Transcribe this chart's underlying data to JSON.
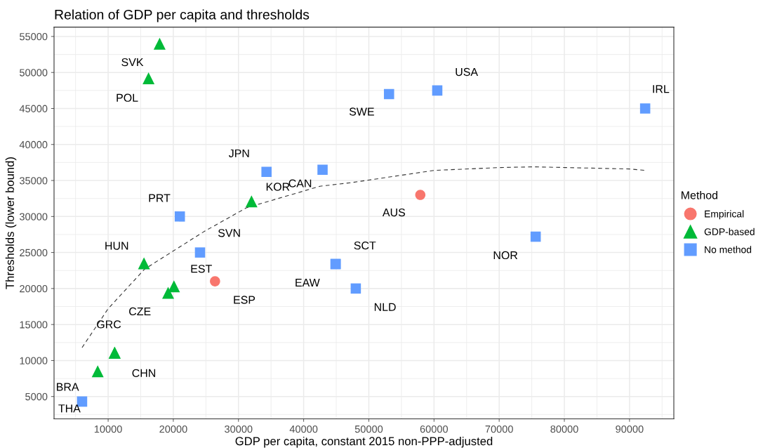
{
  "chart_data": {
    "type": "scatter",
    "title": "Relation of GDP per capita and thresholds",
    "xlabel": "GDP per capita, constant 2015 non-PPP-adjusted",
    "ylabel": "Thresholds (lower bound)",
    "legend_title": "Method",
    "xlim": [
      1700,
      96800
    ],
    "ylim": [
      1900,
      56300
    ],
    "xticks": [
      10000,
      20000,
      30000,
      40000,
      50000,
      60000,
      70000,
      80000,
      90000
    ],
    "yticks": [
      5000,
      10000,
      15000,
      20000,
      25000,
      30000,
      35000,
      40000,
      45000,
      50000,
      55000
    ],
    "grid": true,
    "legend": "right",
    "series": [
      {
        "name": "Empirical",
        "color": "#f8766d",
        "marker": "circle",
        "x": [
          57900,
          26400
        ],
        "values": [
          33000,
          21000
        ],
        "value_labels": [
          "AUS",
          "ESP"
        ]
      },
      {
        "name": "GDP-based",
        "color": "#00ba38",
        "marker": "triangle",
        "x": [
          17900,
          16200,
          32000,
          15500,
          20100,
          19200,
          11000,
          11000,
          8400
        ],
        "values": [
          54000,
          49200,
          32100,
          23500,
          20300,
          19400,
          11100,
          11100,
          8500
        ],
        "value_labels": [
          "SVK",
          "POL",
          "KOR",
          "HUN",
          "EST",
          "CZE",
          "GRC",
          "CHN",
          "BRA"
        ]
      },
      {
        "name": "No method",
        "color": "#619cff",
        "marker": "square",
        "x": [
          6000,
          21000,
          24100,
          34300,
          42900,
          53100,
          60500,
          92400,
          75600,
          44900,
          44900,
          48000
        ],
        "values": [
          4300,
          30000,
          25000,
          36200,
          36500,
          47000,
          47500,
          45000,
          27200,
          23400,
          23400,
          20000
        ],
        "value_labels": [
          "THA",
          "PRT",
          "SVN",
          "JPN",
          "CAN",
          "SWE",
          "USA",
          "IRL",
          "NOR",
          "SCT",
          "EAW",
          "NLD"
        ]
      },
      {
        "type": "line",
        "color": "#333333",
        "line_style": "dashed",
        "x": [
          6000,
          10000,
          15600,
          24700,
          31200,
          42500,
          47300,
          60000,
          70100,
          75300,
          80100,
          90000,
          92500
        ],
        "values": [
          11800,
          17200,
          22700,
          27900,
          31200,
          34200,
          34700,
          36400,
          36800,
          36900,
          36800,
          36600,
          36400
        ]
      }
    ]
  }
}
